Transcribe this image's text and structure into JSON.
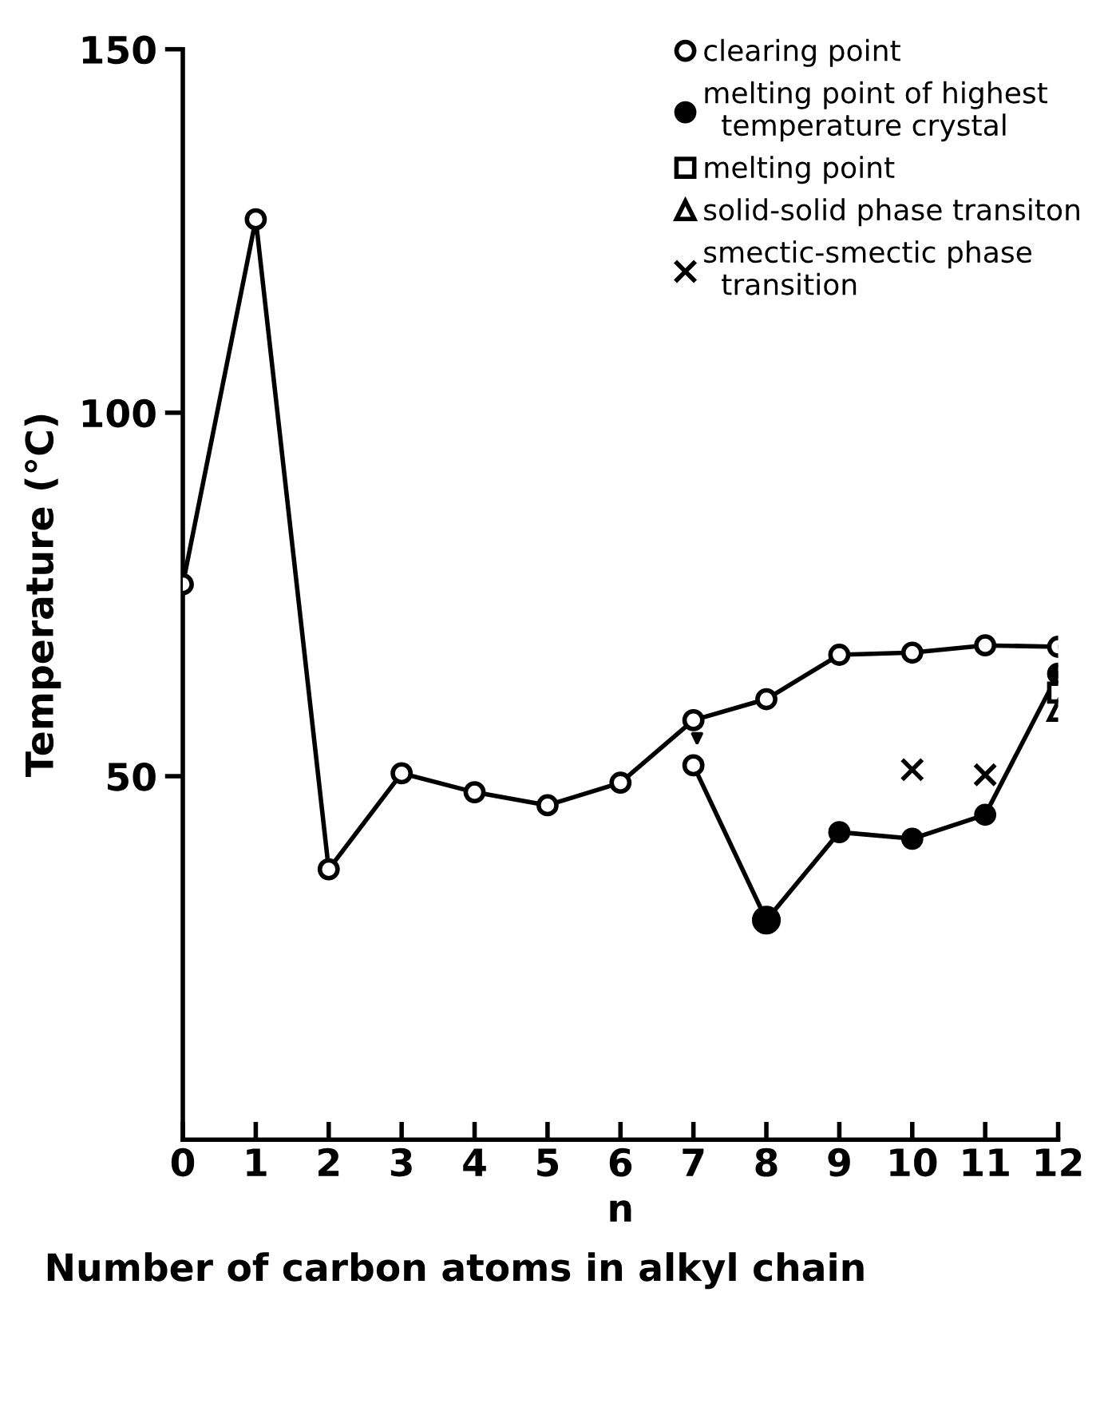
{
  "chart_data": {
    "type": "line",
    "xlabel": "n",
    "ylabel": "Temperature (°C)",
    "annotations": [
      "Number of carbon atoms in alkyl chain"
    ],
    "x": [
      0,
      1,
      2,
      3,
      4,
      5,
      6,
      7,
      8,
      9,
      10,
      11,
      12
    ],
    "xlim": [
      0,
      12
    ],
    "xticks": [
      0,
      1,
      2,
      3,
      4,
      5,
      6,
      7,
      8,
      9,
      10,
      11,
      12
    ],
    "ylim": [
      0,
      150
    ],
    "yticks": [
      50,
      100,
      150
    ],
    "grid": false,
    "legend": "top right",
    "line_style": "solid",
    "series": [
      {
        "name": "clearing point",
        "marker": "circle",
        "color": "#000000",
        "colors": [
          "#ffffff",
          "#ffffff",
          "#ffffff",
          "#ffffff",
          "#ffffff",
          "#ffffff",
          "#ffffff",
          "#ffffff",
          "#ffffff",
          "#ffffff",
          "#ffffff",
          "#ffffff",
          "#ffffff"
        ],
        "values": [
          76.4,
          126.6,
          37.2,
          50.4,
          47.8,
          46,
          49.1,
          57.7,
          60.6,
          66.7,
          67,
          68,
          67.8
        ]
      },
      {
        "marker": "circle",
        "color": "#000000",
        "colors": [
          null,
          null,
          null,
          null,
          null,
          null,
          null,
          "#ffffff",
          "#000000",
          null,
          null,
          null,
          null
        ],
        "values": [
          null,
          null,
          null,
          null,
          null,
          null,
          null,
          51.5,
          30.2,
          null,
          null,
          null,
          null
        ]
      },
      {
        "name": "melting point of highest\n  temperature crystal",
        "marker": "circle",
        "color": "#000000",
        "values": [
          null,
          null,
          null,
          null,
          null,
          null,
          null,
          null,
          30.2,
          42.3,
          41.4,
          44.7,
          64.1
        ]
      },
      {
        "name": "melting point",
        "type": "scatter",
        "marker": "square",
        "color": "#000000",
        "colors": [
          null,
          null,
          null,
          null,
          null,
          null,
          null,
          null,
          null,
          null,
          null,
          null,
          "#ffffff"
        ],
        "values": [
          null,
          null,
          null,
          null,
          null,
          null,
          null,
          null,
          null,
          null,
          null,
          null,
          61.5
        ]
      },
      {
        "name": "solid-solid phase transiton",
        "type": "scatter",
        "marker": "triangle",
        "color": "#000000",
        "colors": [
          null,
          null,
          null,
          null,
          null,
          null,
          null,
          null,
          null,
          null,
          null,
          null,
          "#ffffff"
        ],
        "values": [
          null,
          null,
          null,
          null,
          null,
          null,
          null,
          null,
          null,
          null,
          null,
          null,
          59
        ]
      },
      {
        "name": "smectic-smectic phase\n  transition",
        "type": "scatter",
        "marker": "cross",
        "color": "#000000",
        "values": [
          null,
          null,
          null,
          null,
          null,
          null,
          null,
          null,
          null,
          null,
          50.9,
          50.2,
          null
        ]
      }
    ]
  }
}
